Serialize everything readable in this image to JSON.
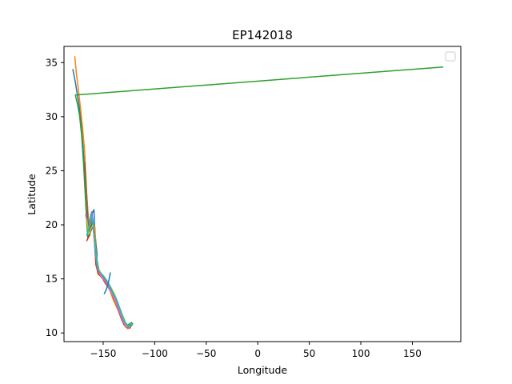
{
  "chart_data": {
    "type": "line",
    "title": "EP142018",
    "xlabel": "Longitude",
    "ylabel": "Latitude",
    "xlim": [
      -188,
      197
    ],
    "ylim": [
      9.2,
      36.5
    ],
    "xticks": [
      -150,
      -100,
      -50,
      0,
      50,
      100,
      150
    ],
    "xtick_labels": [
      "−150",
      "−100",
      "−50",
      "0",
      "50",
      "100",
      "150"
    ],
    "yticks": [
      10,
      15,
      20,
      25,
      30,
      35
    ],
    "ytick_labels": [
      "10",
      "15",
      "20",
      "25",
      "30",
      "35"
    ],
    "grid": false,
    "legend": {
      "placement": "top-right",
      "entries": []
    },
    "colors": [
      "#1f77b4",
      "#ff7f0e",
      "#2ca02c",
      "#d62728",
      "#9467bd",
      "#8c564b",
      "#e377c2",
      "#7f7f7f",
      "#bcbd22",
      "#17becf"
    ],
    "series": [
      {
        "color": "#1f77b4",
        "x": [
          -121,
          -124,
          -128,
          -132,
          -136,
          -140,
          -143,
          -146,
          -149,
          -151,
          -153,
          -154,
          -156,
          -156,
          -158,
          -159,
          -161,
          -163,
          -165,
          -167,
          -169,
          -171,
          -173,
          -175,
          -177,
          -179.5
        ],
        "y": [
          10.9,
          10.7,
          10.6,
          11.4,
          12.4,
          13.3,
          14.1,
          14.6,
          15.0,
          15.2,
          15.4,
          15.6,
          16.2,
          17.4,
          19.3,
          21.4,
          21.0,
          19.0,
          21.5,
          24.0,
          26.5,
          29.0,
          30.8,
          32.0,
          33.2,
          34.4
        ]
      },
      {
        "color": "#ff7f0e",
        "x": [
          -121,
          -124,
          -128,
          -132,
          -136,
          -140,
          -143,
          -146,
          -149,
          -151,
          -153,
          -155,
          -156,
          -157,
          -158,
          -160,
          -162,
          -164,
          -166,
          -168,
          -170,
          -172,
          -174,
          -176,
          -177.5
        ],
        "y": [
          10.8,
          10.6,
          10.5,
          11.2,
          12.2,
          13.0,
          13.8,
          14.4,
          14.9,
          15.1,
          15.3,
          15.4,
          16.0,
          17.8,
          19.8,
          20.2,
          19.5,
          20.0,
          23.0,
          26.8,
          29.0,
          30.8,
          32.5,
          34.0,
          35.6
        ]
      },
      {
        "color": "#2ca02c",
        "x": [
          -122,
          -125,
          -129,
          -133,
          -137,
          -141,
          -144,
          -147,
          -150,
          -152,
          -154,
          -155,
          -157,
          -158,
          -159,
          -161,
          -163,
          -165,
          -167,
          -169,
          -171,
          -173,
          -175,
          -177,
          180
        ],
        "y": [
          11.0,
          10.8,
          10.7,
          11.6,
          12.7,
          13.6,
          14.4,
          14.9,
          15.3,
          15.4,
          15.5,
          15.7,
          16.5,
          17.8,
          19.5,
          20.3,
          19.2,
          18.8,
          22.0,
          25.6,
          28.4,
          30.2,
          31.2,
          32.0,
          34.6
        ]
      },
      {
        "color": "#d62728",
        "x": [
          -123,
          -126,
          -130,
          -134,
          -138,
          -142,
          -145,
          -148,
          -151,
          -153,
          -155,
          -157,
          -158,
          -160,
          -162,
          -164,
          -166
        ],
        "y": [
          10.5,
          10.4,
          10.8,
          11.8,
          12.9,
          13.7,
          14.2,
          14.6,
          15.1,
          15.3,
          15.6,
          16.3,
          18.0,
          20.1,
          19.7,
          18.9,
          18.5
        ]
      },
      {
        "color": "#9467bd",
        "x": [
          -124,
          -127,
          -131,
          -135,
          -139,
          -143,
          -146,
          -149,
          -152,
          -154,
          -156,
          -157,
          -159,
          -161,
          -163,
          -165,
          -167
        ],
        "y": [
          10.6,
          10.5,
          11.1,
          12.1,
          13.1,
          13.9,
          14.5,
          15.0,
          15.4,
          15.6,
          16.1,
          17.5,
          19.4,
          21.2,
          20.4,
          19.8,
          21.0
        ]
      },
      {
        "color": "#8c564b",
        "x": [
          -122,
          -125,
          -129,
          -133,
          -137,
          -141,
          -144,
          -147,
          -150,
          -152,
          -154,
          -156,
          -158,
          -160,
          -162,
          -164,
          -166,
          -168
        ],
        "y": [
          10.7,
          10.5,
          10.9,
          11.9,
          13.0,
          13.8,
          14.3,
          14.8,
          15.2,
          15.5,
          15.8,
          16.8,
          18.6,
          19.9,
          19.4,
          19.0,
          22.5,
          25.8
        ]
      },
      {
        "color": "#e377c2",
        "x": [
          -125,
          -128,
          -132,
          -136,
          -140,
          -144,
          -147,
          -150,
          -153,
          -155,
          -157,
          -159,
          -161,
          -163,
          -165
        ],
        "y": [
          10.4,
          10.6,
          11.5,
          12.5,
          13.4,
          14.0,
          14.6,
          15.0,
          15.4,
          15.9,
          17.0,
          19.0,
          20.8,
          20.0,
          19.4
        ]
      },
      {
        "color": "#7f7f7f",
        "x": [
          -123,
          -126,
          -130,
          -134,
          -138,
          -142,
          -145,
          -148,
          -151,
          -153,
          -155,
          -157,
          -159,
          -161,
          -163,
          -165
        ],
        "y": [
          10.6,
          10.5,
          11.2,
          12.2,
          13.2,
          13.9,
          14.5,
          14.9,
          15.3,
          15.6,
          16.0,
          17.2,
          19.2,
          20.5,
          19.8,
          19.2
        ]
      },
      {
        "color": "#bcbd22",
        "x": [
          -124,
          -127,
          -131,
          -135,
          -139,
          -143,
          -146,
          -149,
          -152,
          -154,
          -156,
          -158,
          -160,
          -162,
          -164,
          -166
        ],
        "y": [
          10.5,
          10.7,
          11.6,
          12.6,
          13.6,
          14.3,
          14.8,
          15.2,
          15.5,
          15.8,
          16.6,
          18.4,
          20.0,
          19.6,
          19.1,
          20.6
        ]
      },
      {
        "color": "#17becf",
        "x": [
          -122,
          -125,
          -129,
          -133,
          -137,
          -141,
          -144,
          -147,
          -150,
          -152,
          -154,
          -156,
          -158,
          -160,
          -162,
          -164,
          -166
        ],
        "y": [
          10.8,
          10.6,
          11.0,
          12.0,
          13.1,
          13.8,
          14.4,
          14.9,
          15.3,
          15.5,
          15.7,
          16.4,
          18.2,
          20.4,
          21.0,
          19.6,
          19.0
        ]
      },
      {
        "color": "#1f77b4",
        "x": [
          -143,
          -145,
          -147,
          -149
        ],
        "y": [
          15.6,
          14.6,
          14.0,
          13.6
        ]
      }
    ]
  }
}
